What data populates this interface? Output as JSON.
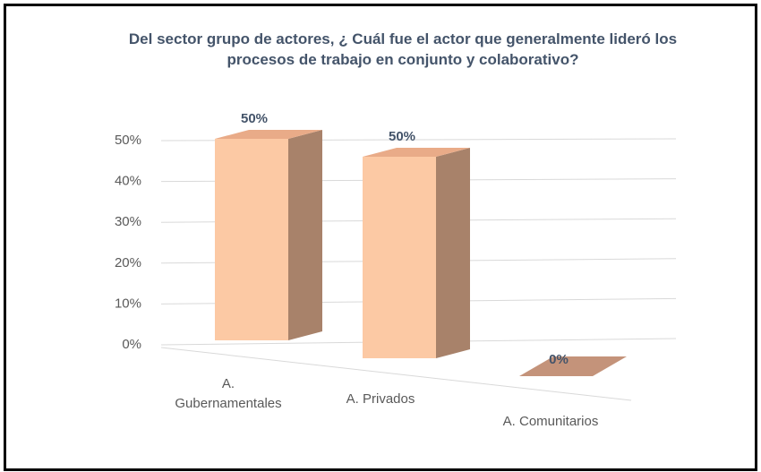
{
  "chart_data": {
    "type": "bar3d",
    "title": "Del sector grupo de actores, ¿ Cuál fue el actor que generalmente lideró los procesos de trabajo en conjunto y colaborativo?",
    "categories": [
      "A. Gubernamentales",
      "A. Privados",
      "A. Comunitarios"
    ],
    "values": [
      50,
      50,
      0
    ],
    "value_labels": [
      "50%",
      "50%",
      "0%"
    ],
    "color": "#fcc9a4",
    "ylim": [
      0,
      50
    ],
    "yticks": [
      {
        "value": 0,
        "label": "0%"
      },
      {
        "value": 10,
        "label": "10%"
      },
      {
        "value": 20,
        "label": "20%"
      },
      {
        "value": 30,
        "label": "30%"
      },
      {
        "value": 40,
        "label": "40%"
      },
      {
        "value": 50,
        "label": "50%"
      }
    ],
    "grid": true
  }
}
